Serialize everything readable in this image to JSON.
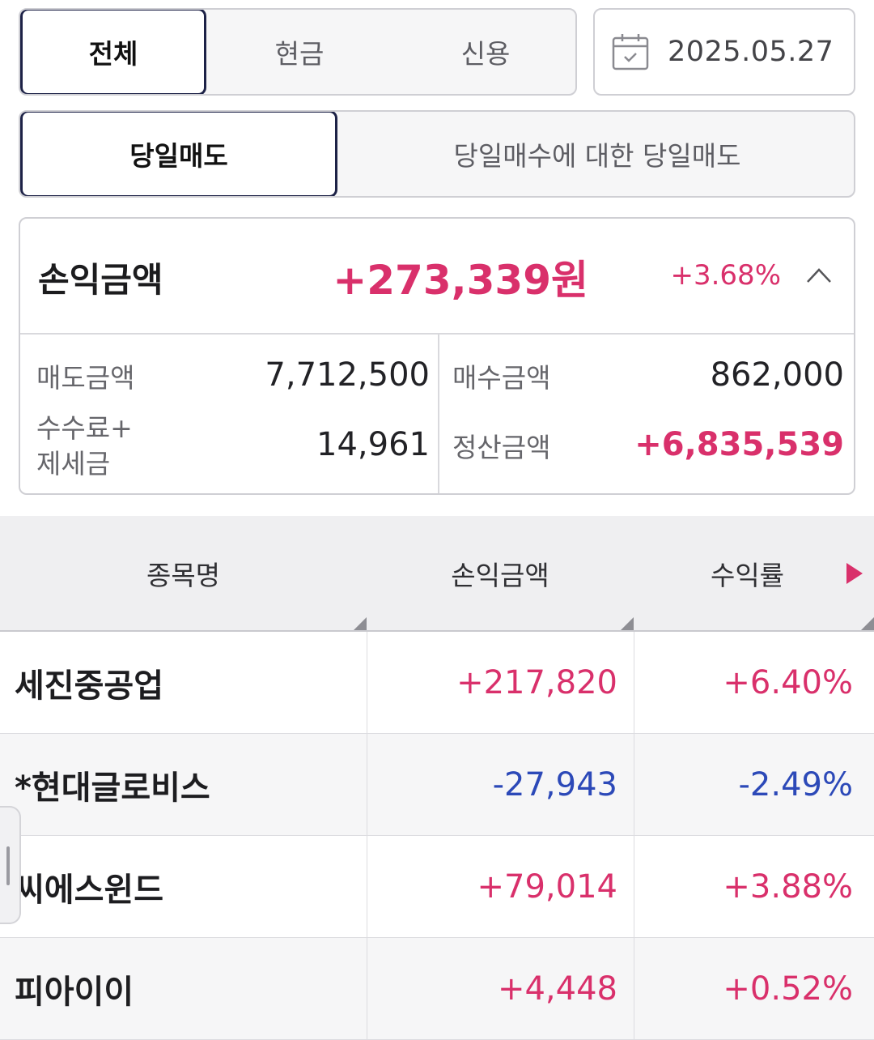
{
  "account_tabs": [
    "전체",
    "현금",
    "신용"
  ],
  "account_tab_selected": "전체",
  "date": "2025.05.27",
  "sale_tabs": [
    "당일매도",
    "당일매수에 대한 당일매도"
  ],
  "sale_tab_selected": "당일매도",
  "summary": {
    "label": "손익금액",
    "amount": "+273,339원",
    "rate": "+3.68%",
    "sell_label": "매도금액",
    "sell_value": "7,712,500",
    "buy_label": "매수금액",
    "buy_value": "862,000",
    "fee_label_line1": "수수료+",
    "fee_label_line2": "제세금",
    "fee_value": "14,961",
    "settle_label": "정산금액",
    "settle_value": "+6,835,539"
  },
  "table": {
    "headers": [
      "종목명",
      "손익금액",
      "수익률"
    ],
    "rows": [
      {
        "name": "세진중공업",
        "pl": "+217,820",
        "rate": "+6.40%",
        "direction": "up"
      },
      {
        "name": "*현대글로비스",
        "pl": "-27,943",
        "rate": "-2.49%",
        "direction": "down"
      },
      {
        "name": "씨에스윈드",
        "pl": "+79,014",
        "rate": "+3.88%",
        "direction": "up"
      },
      {
        "name": "피아이이",
        "pl": "+4,448",
        "rate": "+0.52%",
        "direction": "up"
      }
    ]
  },
  "colors": {
    "positive": "#d9306b",
    "negative": "#2c49b8",
    "selected_border": "#1d2247"
  },
  "icons": {
    "date": "calendar-icon",
    "summary_toggle": "chevron-up-icon",
    "scroll_right": "triangle-right-icon"
  }
}
